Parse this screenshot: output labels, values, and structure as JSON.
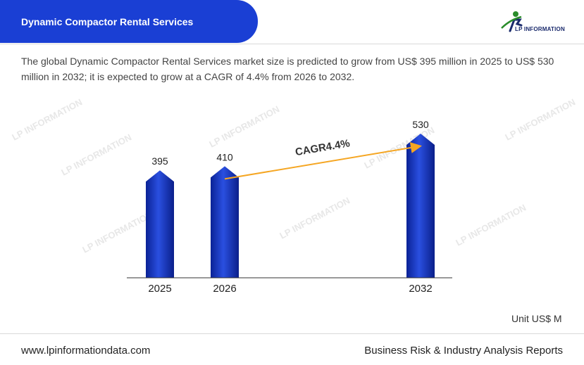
{
  "header": {
    "title": "Dynamic Compactor Rental Services",
    "logo_text": "LP INFORMATION"
  },
  "description": "The global Dynamic Compactor Rental Services market size is predicted to grow from US$ 395 million in 2025 to US$ 530 million in 2032; it is expected to grow at a CAGR of 4.4% from 2026 to 2032.",
  "watermark_text": "LP INFORMATION",
  "unit_label": "Unit US$ M",
  "footer": {
    "website": "www.lpinformationdata.com",
    "tagline": "Business Risk & Industry Analysis Reports"
  },
  "colors": {
    "banner": "#1a3fd4",
    "bar_top": "#2448d8",
    "bar_bottom": "#0a1f8a",
    "arrow": "#f5a623"
  },
  "chart_data": {
    "type": "bar",
    "categories": [
      "2025",
      "2026",
      "2032"
    ],
    "values": [
      395,
      410,
      530
    ],
    "annotation": "CAGR4.4%",
    "title": "",
    "xlabel": "",
    "ylabel": "",
    "ylim": [
      0,
      600
    ],
    "grid": false
  }
}
